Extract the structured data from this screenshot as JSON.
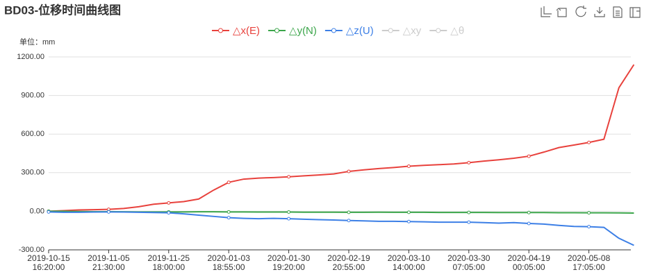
{
  "chart_data": {
    "type": "line",
    "title": "BD03-位移时间曲线图",
    "y_label": "单位：mm",
    "categories": [
      "2019-10-15\n16:20:00",
      null,
      null,
      null,
      "2019-11-05\n21:30:00",
      null,
      null,
      null,
      "2019-11-25\n18:00:00",
      null,
      null,
      null,
      "2020-01-03\n18:55:00",
      null,
      null,
      null,
      "2020-01-30\n19:20:00",
      null,
      null,
      null,
      "2020-02-19\n20:55:00",
      null,
      null,
      null,
      "2020-03-10\n14:00:00",
      null,
      null,
      null,
      "2020-03-30\n07:05:00",
      null,
      null,
      null,
      "2020-04-19\n00:05:00",
      null,
      null,
      null,
      "2020-05-08\n17:05:00",
      null,
      null,
      null
    ],
    "series": [
      {
        "name": "△x(E)",
        "color": "#e8413c",
        "values": [
          0,
          5,
          10,
          12,
          15,
          22,
          35,
          55,
          65,
          75,
          95,
          165,
          225,
          250,
          258,
          262,
          268,
          275,
          282,
          290,
          310,
          322,
          332,
          340,
          350,
          357,
          362,
          368,
          378,
          390,
          400,
          412,
          428,
          460,
          495,
          515,
          535,
          560,
          960,
          1140
        ]
      },
      {
        "name": "△y(N)",
        "color": "#3ba54a",
        "values": [
          0,
          0,
          -2,
          -3,
          -3,
          -4,
          -5,
          -5,
          -5,
          -5,
          -4,
          -4,
          -5,
          -5,
          -6,
          -6,
          -6,
          -7,
          -7,
          -7,
          -8,
          -8,
          -7,
          -8,
          -8,
          -8,
          -9,
          -9,
          -9,
          -9,
          -10,
          -10,
          -10,
          -10,
          -11,
          -11,
          -12,
          -12,
          -13,
          -14
        ]
      },
      {
        "name": "△z(U)",
        "color": "#3c7fe6",
        "values": [
          -5,
          -8,
          -8,
          -6,
          -5,
          -6,
          -8,
          -10,
          -12,
          -20,
          -30,
          -40,
          -50,
          -55,
          -58,
          -55,
          -58,
          -62,
          -65,
          -68,
          -72,
          -75,
          -78,
          -78,
          -80,
          -82,
          -85,
          -85,
          -85,
          -88,
          -92,
          -88,
          -95,
          -100,
          -110,
          -118,
          -120,
          -125,
          -210,
          -265
        ]
      }
    ],
    "hidden_legend": [
      {
        "name": "△xy"
      },
      {
        "name": "△θ"
      }
    ],
    "inactive_color": "#cccccc",
    "ylim": [
      -300,
      1200
    ],
    "yticks": [
      {
        "value": -300,
        "label": "-300.00"
      },
      {
        "value": 0,
        "label": "0.00"
      },
      {
        "value": 300,
        "label": "300.00"
      },
      {
        "value": 600,
        "label": "600.00"
      },
      {
        "value": 900,
        "label": "900.00"
      },
      {
        "value": 1200,
        "label": "1200.00"
      }
    ],
    "grid": true
  }
}
